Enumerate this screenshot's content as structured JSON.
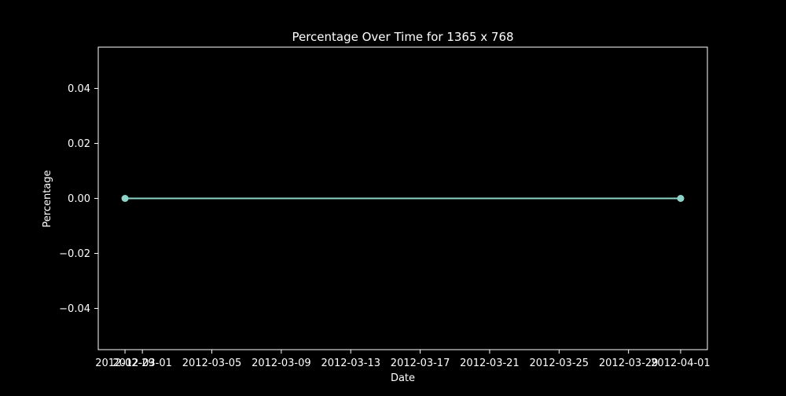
{
  "chart_data": {
    "type": "line",
    "title": "Percentage Over Time for 1365 x 768",
    "xlabel": "Date",
    "ylabel": "Percentage",
    "x_tick_labels": [
      "2012-02-29",
      "2012-03-01",
      "2012-03-05",
      "2012-03-09",
      "2012-03-13",
      "2012-03-17",
      "2012-03-21",
      "2012-03-25",
      "2012-03-29",
      "2012-04-01"
    ],
    "y_tick_labels": [
      "−0.04",
      "−0.02",
      "0.00",
      "0.02",
      "0.04"
    ],
    "y_ticks": [
      -0.04,
      -0.02,
      0.0,
      0.02,
      0.04
    ],
    "ylim": [
      -0.055,
      0.055
    ],
    "xlim": [
      "2012-02-27T11:00",
      "2012-04-02T13:00"
    ],
    "series": [
      {
        "points": [
          {
            "x": "2012-02-29",
            "y": 0.0
          },
          {
            "x": "2012-04-01",
            "y": 0.0
          }
        ],
        "color": "#8dd3c7"
      }
    ],
    "grid": false,
    "background": "#000000",
    "foreground": "#ffffff"
  }
}
